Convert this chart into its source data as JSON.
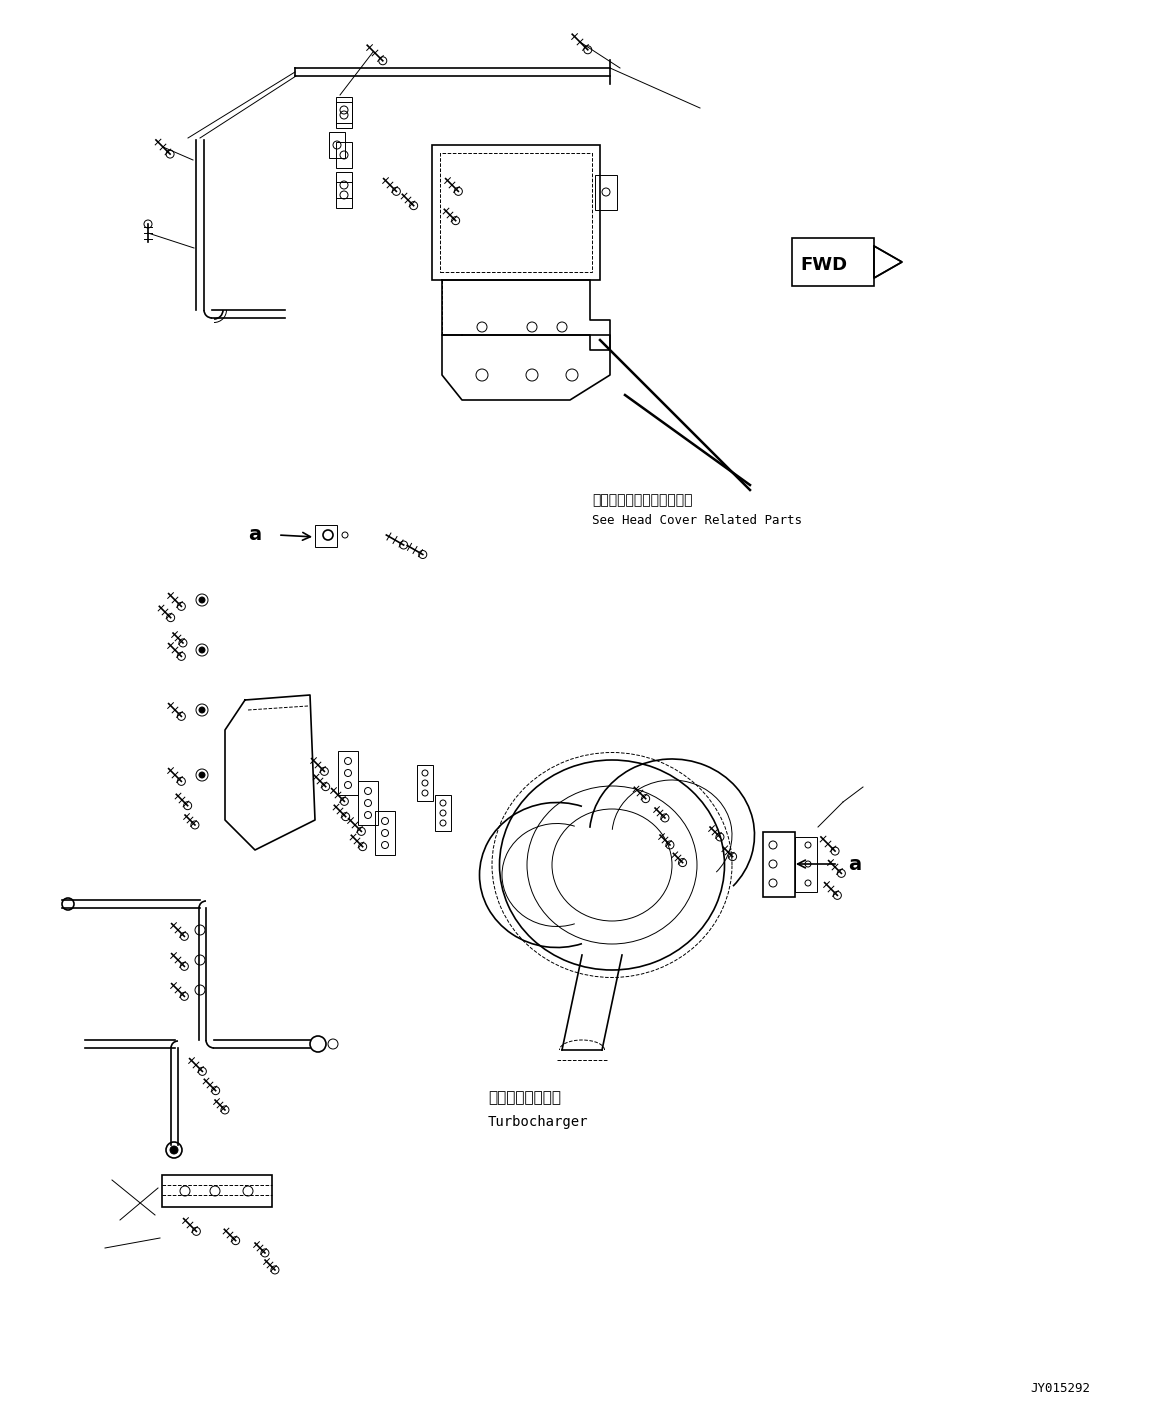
{
  "fig_width": 11.63,
  "fig_height": 14.07,
  "dpi": 100,
  "bg_color": "#ffffff",
  "line_color": "#000000",
  "drawing_number": "JY015292",
  "fwd_label": "FWD",
  "annotation1_jp": "ヘッドカバー関連部品参照",
  "annotation1_en": "See Head Cover Related Parts",
  "annotation2_jp": "ターボチャージャ",
  "annotation2_en": "Turbocharger",
  "label_a": "a"
}
